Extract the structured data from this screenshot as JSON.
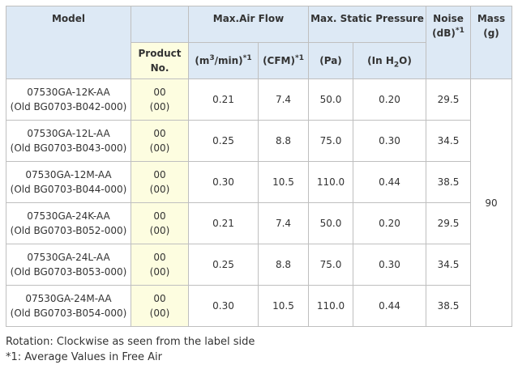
{
  "table": {
    "headers": {
      "model": "Model",
      "max_air_flow": "Max.Air Flow",
      "max_static_pressure": "Max. Static Pressure",
      "noise_label": "Noise",
      "noise_unit": "(dB)",
      "noise_note": "*1",
      "mass_label": "Mass",
      "mass_unit": "(g)",
      "product_no": "Product No.",
      "airflow_m3_prefix": "(m",
      "airflow_m3_exp": "3",
      "airflow_m3_suffix": "/min)",
      "airflow_m3_note": "*1",
      "airflow_cfm": "(CFM)",
      "airflow_cfm_note": "*1",
      "pressure_pa": "(Pa)",
      "pressure_inh2o_prefix": "(In H",
      "pressure_inh2o_sub": "2",
      "pressure_inh2o_suffix": "O)"
    },
    "rows": [
      {
        "model": "07530GA-12K-AA",
        "old_model": "(Old BG0703-B042-000)",
        "product_no": "00",
        "product_no_old": "(00)",
        "airflow_m3": "0.21",
        "airflow_cfm": "7.4",
        "pressure_pa": "50.0",
        "pressure_inh2o": "0.20",
        "noise": "29.5"
      },
      {
        "model": "07530GA-12L-AA",
        "old_model": "(Old BG0703-B043-000)",
        "product_no": "00",
        "product_no_old": "(00)",
        "airflow_m3": "0.25",
        "airflow_cfm": "8.8",
        "pressure_pa": "75.0",
        "pressure_inh2o": "0.30",
        "noise": "34.5"
      },
      {
        "model": "07530GA-12M-AA",
        "old_model": "(Old BG0703-B044-000)",
        "product_no": "00",
        "product_no_old": "(00)",
        "airflow_m3": "0.30",
        "airflow_cfm": "10.5",
        "pressure_pa": "110.0",
        "pressure_inh2o": "0.44",
        "noise": "38.5"
      },
      {
        "model": "07530GA-24K-AA",
        "old_model": "(Old BG0703-B052-000)",
        "product_no": "00",
        "product_no_old": "(00)",
        "airflow_m3": "0.21",
        "airflow_cfm": "7.4",
        "pressure_pa": "50.0",
        "pressure_inh2o": "0.20",
        "noise": "29.5"
      },
      {
        "model": "07530GA-24L-AA",
        "old_model": "(Old BG0703-B053-000)",
        "product_no": "00",
        "product_no_old": "(00)",
        "airflow_m3": "0.25",
        "airflow_cfm": "8.8",
        "pressure_pa": "75.0",
        "pressure_inh2o": "0.30",
        "noise": "34.5"
      },
      {
        "model": "07530GA-24M-AA",
        "old_model": "(Old BG0703-B054-000)",
        "product_no": "00",
        "product_no_old": "(00)",
        "airflow_m3": "0.30",
        "airflow_cfm": "10.5",
        "pressure_pa": "110.0",
        "pressure_inh2o": "0.44",
        "noise": "38.5"
      }
    ],
    "mass": "90"
  },
  "notes": {
    "rotation": "Rotation: Clockwise as seen from the label side",
    "footnote": "*1: Average Values in Free Air"
  }
}
